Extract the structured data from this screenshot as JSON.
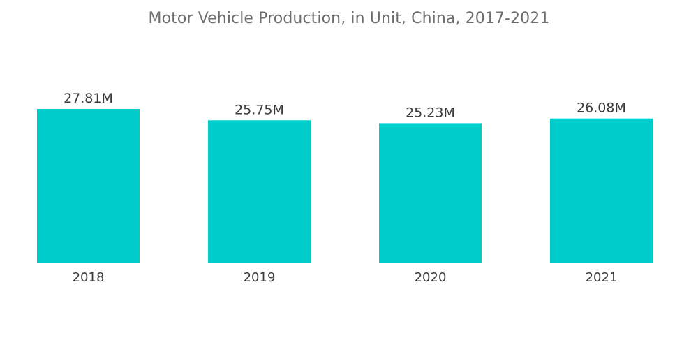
{
  "title": "Motor Vehicle Production, in Unit, China, 2017-2021",
  "chart_data": {
    "type": "bar",
    "title": "Motor Vehicle Production, in Unit, China, 2017-2021",
    "categories": [
      "2018",
      "2019",
      "2020",
      "2021"
    ],
    "values": [
      27.81,
      25.75,
      25.23,
      26.08
    ],
    "value_labels": [
      "27.81M",
      "25.75M",
      "25.23M",
      "26.08M"
    ],
    "unit": "M",
    "xlabel": "",
    "ylabel": "",
    "ylim": [
      0,
      27.81
    ],
    "grid": false,
    "legend": "none"
  },
  "colors": {
    "bar": "#00cccc",
    "title": "#6d6d6d",
    "text": "#3a3a3a"
  }
}
